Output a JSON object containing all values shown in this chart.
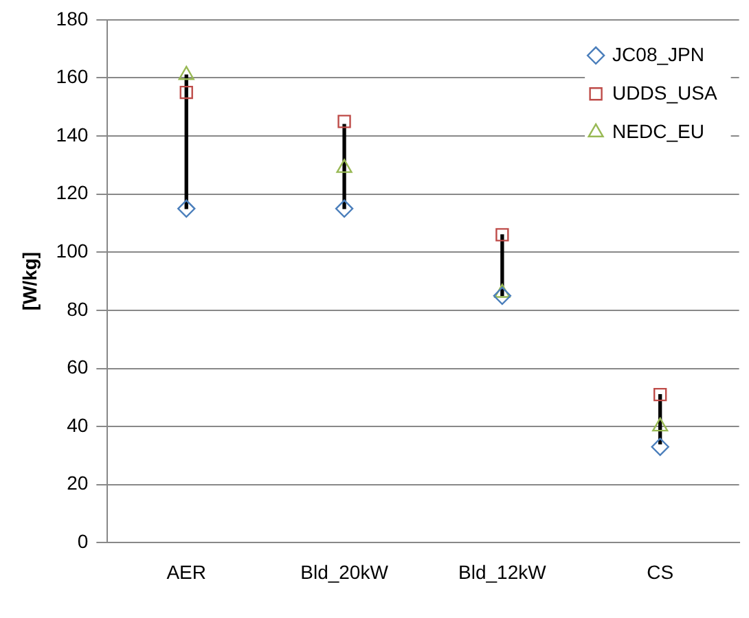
{
  "chart_data": {
    "type": "scatter",
    "ylabel": "[W/kg]",
    "categories": [
      "AER",
      "Bld_20kW",
      "Bld_12kW",
      "CS"
    ],
    "ylim": [
      0,
      180
    ],
    "yticks": [
      0,
      20,
      40,
      60,
      80,
      100,
      120,
      140,
      160,
      180
    ],
    "grid": "y",
    "legend": "top right",
    "series": [
      {
        "type": "bar",
        "color": "#000000",
        "base": [
          115,
          115,
          85,
          34
        ],
        "values": [
          46,
          29,
          21,
          17
        ]
      },
      {
        "name": "JC08_JPN",
        "color": "#4a7ebb",
        "marker": "diamond",
        "values": [
          115,
          115,
          85,
          33
        ]
      },
      {
        "name": "UDDS_USA",
        "color": "#be4b48",
        "marker": "square",
        "values": [
          155,
          145,
          106,
          51
        ]
      },
      {
        "name": "NEDC_EU",
        "color": "#98b954",
        "marker": "triangle",
        "values": [
          161,
          129,
          86,
          40
        ]
      }
    ]
  }
}
